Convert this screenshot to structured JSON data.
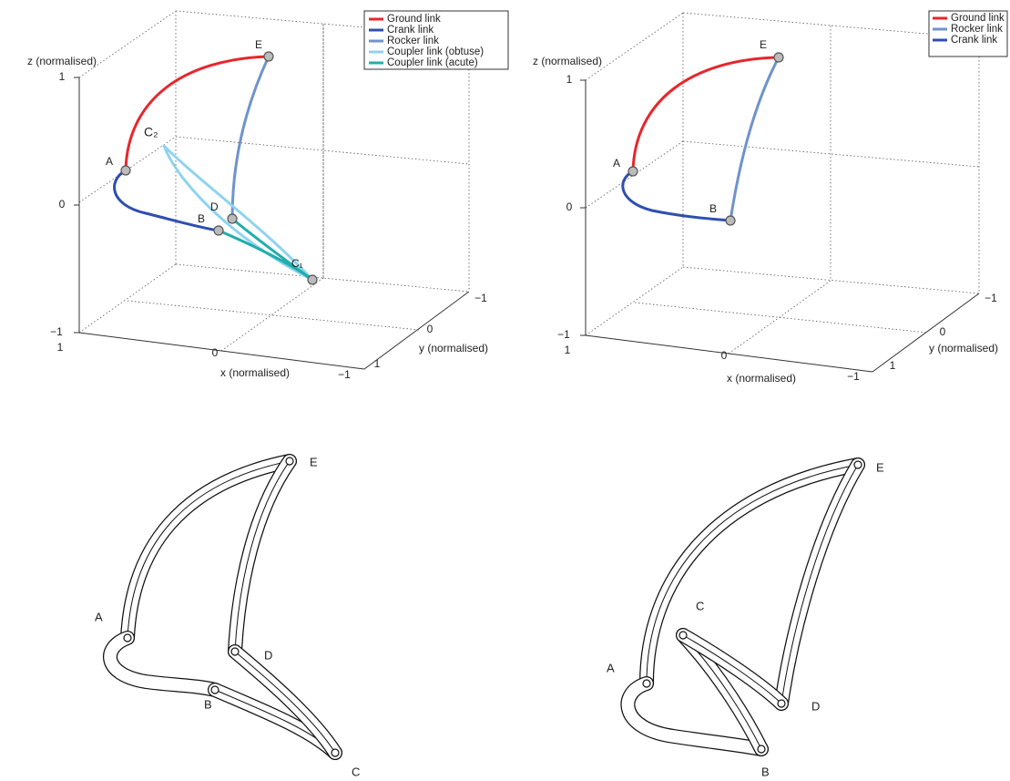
{
  "panels": [
    {
      "z_label": "z (normalised)",
      "x_label": "x (normalised)",
      "y_label": "y (normalised)",
      "z_ticks": [
        "1",
        "0",
        "−1"
      ],
      "x_ticks": [
        "1",
        "0",
        "−1"
      ],
      "y_ticks": [
        "−1",
        "0",
        "1"
      ],
      "legend": [
        {
          "name": "Ground link",
          "color": "#e8262b"
        },
        {
          "name": "Crank link",
          "color": "#2f4fae"
        },
        {
          "name": "Rocker link",
          "color": "#6f93cb"
        },
        {
          "name": "Coupler link (obtuse)",
          "color": "#8fd3ef"
        },
        {
          "name": "Coupler link (acute)",
          "color": "#22aeac"
        }
      ],
      "points": [
        "E",
        "A",
        "C₂",
        "D",
        "B",
        "C₁"
      ]
    },
    {
      "z_label": "z (normalised)",
      "x_label": "x (normalised)",
      "y_label": "y (normalised)",
      "z_ticks": [
        "1",
        "0",
        "−1"
      ],
      "x_ticks": [
        "1",
        "0",
        "−1"
      ],
      "y_ticks": [
        "−1",
        "0",
        "1"
      ],
      "legend": [
        {
          "name": "Ground link",
          "color": "#e8262b"
        },
        {
          "name": "Rocker link",
          "color": "#6f93cb"
        },
        {
          "name": "Crank link",
          "color": "#2f4fae"
        }
      ],
      "points": [
        "E",
        "A",
        "B"
      ]
    }
  ],
  "drawings": [
    {
      "labels": [
        "E",
        "A",
        "D",
        "B",
        "C"
      ]
    },
    {
      "labels": [
        "E",
        "C",
        "A",
        "D",
        "B"
      ]
    }
  ]
}
